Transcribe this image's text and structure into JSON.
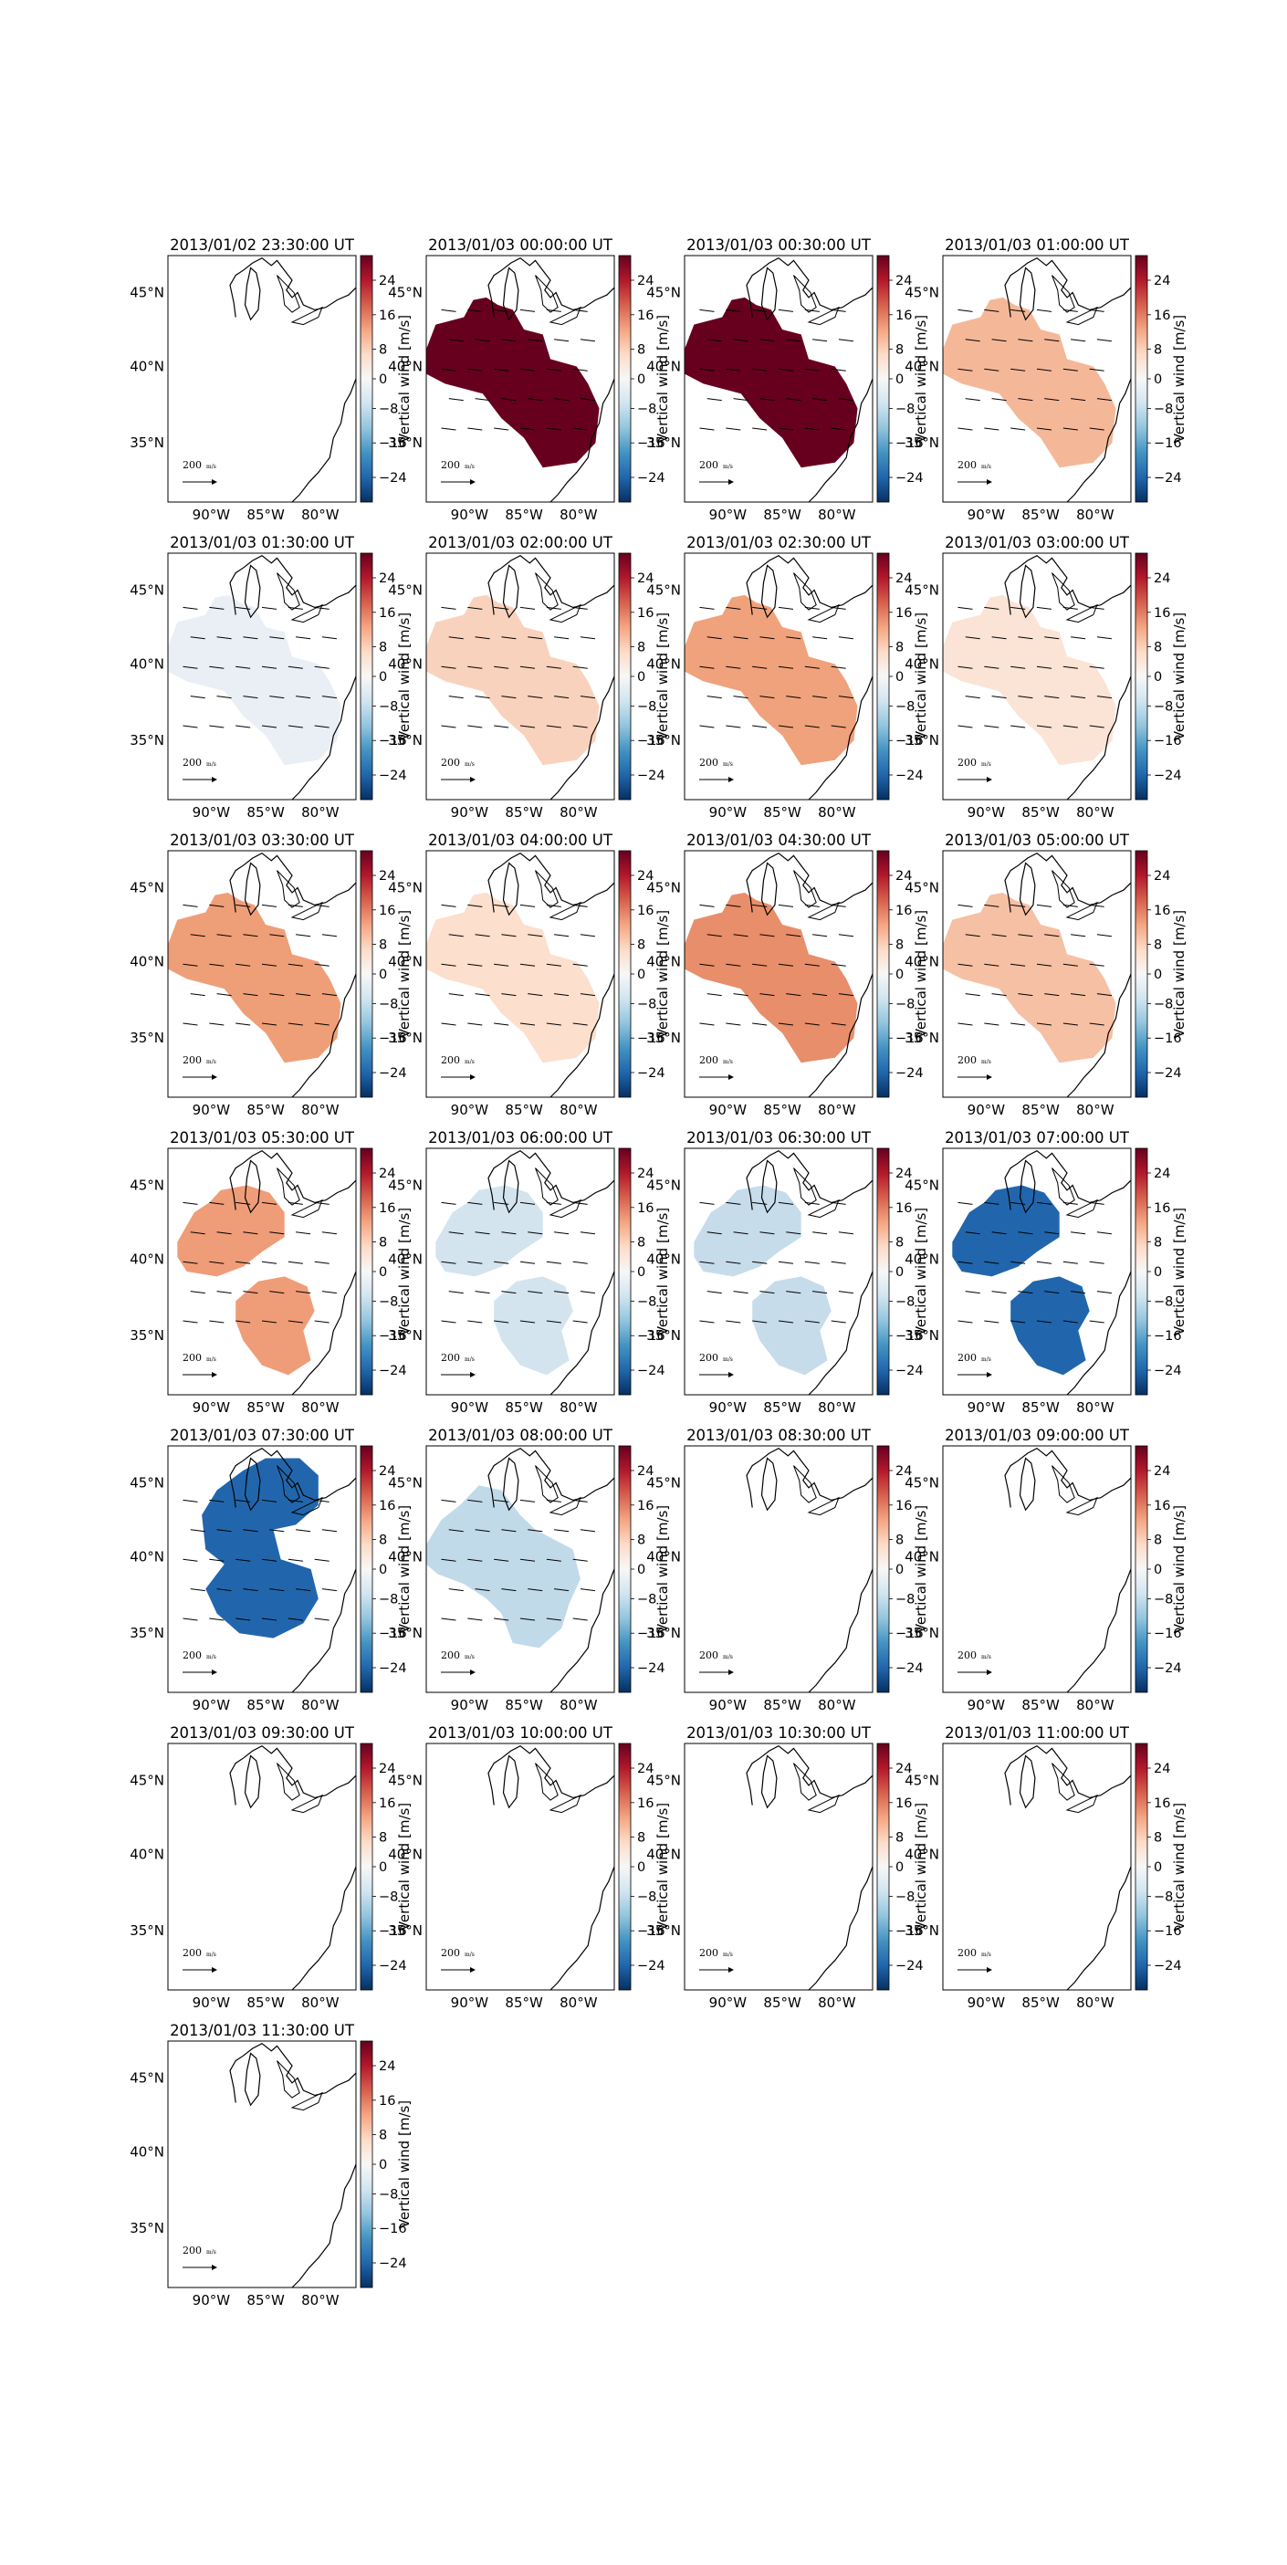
{
  "figure": {
    "colorbar": {
      "label": "Vertical wind [m/s]",
      "ticks": [
        "24",
        "16",
        "8",
        "0",
        "−8",
        "−16",
        "−24"
      ],
      "colormap": [
        "#67001f",
        "#b2182b",
        "#d6604d",
        "#f4a582",
        "#fddbc7",
        "#f7f7f7",
        "#d1e5f0",
        "#92c5de",
        "#4393c3",
        "#2166ac",
        "#053061"
      ]
    },
    "lat_labels": [
      "45°N",
      "40°N",
      "35°N"
    ],
    "lon_labels": [
      "90°W",
      "85°W",
      "80°W"
    ],
    "reference_vector_label": "200",
    "reference_vector_unit": "m/s",
    "panels": [
      {
        "title": "2013/01/02 23:30:00 UT",
        "fill_color": null,
        "shape": "none",
        "vector_rows": 0
      },
      {
        "title": "2013/01/03 00:00:00 UT",
        "fill_color": "#67001f",
        "shape": "large",
        "vector_rows": 5
      },
      {
        "title": "2013/01/03 00:30:00 UT",
        "fill_color": "#67001f",
        "shape": "large",
        "vector_rows": 5
      },
      {
        "title": "2013/01/03 01:00:00 UT",
        "fill_color": "#f4b899",
        "shape": "large",
        "vector_rows": 5
      },
      {
        "title": "2013/01/03 01:30:00 UT",
        "fill_color": "#e9eff5",
        "shape": "large",
        "vector_rows": 5
      },
      {
        "title": "2013/01/03 02:00:00 UT",
        "fill_color": "#f9d2bd",
        "shape": "large",
        "vector_rows": 5
      },
      {
        "title": "2013/01/03 02:30:00 UT",
        "fill_color": "#f0a27c",
        "shape": "large",
        "vector_rows": 5
      },
      {
        "title": "2013/01/03 03:00:00 UT",
        "fill_color": "#fbe3d5",
        "shape": "large",
        "vector_rows": 5
      },
      {
        "title": "2013/01/03 03:30:00 UT",
        "fill_color": "#ef9f78",
        "shape": "large",
        "vector_rows": 5
      },
      {
        "title": "2013/01/03 04:00:00 UT",
        "fill_color": "#fcdfcc",
        "shape": "large",
        "vector_rows": 5
      },
      {
        "title": "2013/01/03 04:30:00 UT",
        "fill_color": "#e88e6b",
        "shape": "large",
        "vector_rows": 5
      },
      {
        "title": "2013/01/03 05:00:00 UT",
        "fill_color": "#f6c0a4",
        "shape": "large",
        "vector_rows": 5
      },
      {
        "title": "2013/01/03 05:30:00 UT",
        "fill_color": "#ef9d78",
        "shape": "split",
        "vector_rows": 5
      },
      {
        "title": "2013/01/03 06:00:00 UT",
        "fill_color": "#d3e4ef",
        "shape": "split",
        "vector_rows": 5
      },
      {
        "title": "2013/01/03 06:30:00 UT",
        "fill_color": "#c6dceb",
        "shape": "split",
        "vector_rows": 5
      },
      {
        "title": "2013/01/03 07:00:00 UT",
        "fill_color": "#2166ac",
        "shape": "split",
        "vector_rows": 5
      },
      {
        "title": "2013/01/03 07:30:00 UT",
        "fill_color": "#2166ac",
        "shape": "north",
        "vector_rows": 5
      },
      {
        "title": "2013/01/03 08:00:00 UT",
        "fill_color": "#c1daea",
        "shape": "west",
        "vector_rows": 5
      },
      {
        "title": "2013/01/03 08:30:00 UT",
        "fill_color": null,
        "shape": "none",
        "vector_rows": 0
      },
      {
        "title": "2013/01/03 09:00:00 UT",
        "fill_color": null,
        "shape": "none",
        "vector_rows": 0
      },
      {
        "title": "2013/01/03 09:30:00 UT",
        "fill_color": null,
        "shape": "none",
        "vector_rows": 0
      },
      {
        "title": "2013/01/03 10:00:00 UT",
        "fill_color": null,
        "shape": "none",
        "vector_rows": 0
      },
      {
        "title": "2013/01/03 10:30:00 UT",
        "fill_color": null,
        "shape": "none",
        "vector_rows": 0
      },
      {
        "title": "2013/01/03 11:00:00 UT",
        "fill_color": null,
        "shape": "none",
        "vector_rows": 0
      },
      {
        "title": "2013/01/03 11:30:00 UT",
        "fill_color": null,
        "shape": "none",
        "vector_rows": 0
      }
    ]
  }
}
